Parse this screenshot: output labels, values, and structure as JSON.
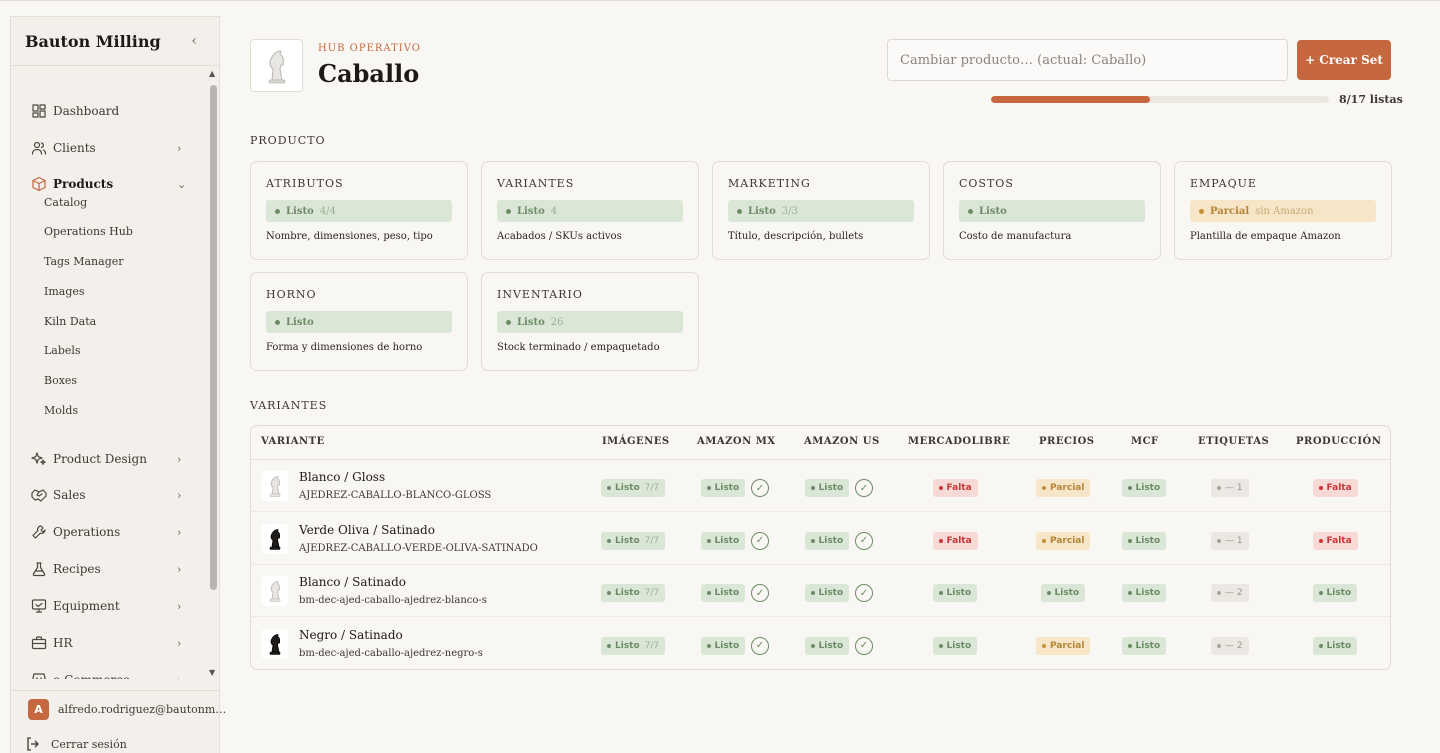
{
  "sidebar": {
    "brand": "Bauton Milling",
    "collapse_icon": "‹",
    "nav": [
      {
        "label": "Dashboard",
        "icon": "dashboard-icon",
        "chevron": ""
      },
      {
        "label": "Clients",
        "icon": "users-icon",
        "chevron": "›"
      },
      {
        "label": "Products",
        "icon": "box-icon",
        "chevron": "⌄"
      },
      {
        "label": "Product Design",
        "icon": "sparkles-icon",
        "chevron": "›"
      },
      {
        "label": "Sales",
        "icon": "handshake-icon",
        "chevron": "›"
      },
      {
        "label": "Operations",
        "icon": "wrench-icon",
        "chevron": "›"
      },
      {
        "label": "Recipes",
        "icon": "flask-icon",
        "chevron": "›"
      },
      {
        "label": "Equipment",
        "icon": "monitor-icon",
        "chevron": "›"
      },
      {
        "label": "HR",
        "icon": "briefcase-icon",
        "chevron": "›"
      },
      {
        "label": "e-Commerce",
        "icon": "store-icon",
        "chevron": "›"
      }
    ],
    "products_sub": [
      "Catalog",
      "Operations Hub",
      "Tags Manager",
      "Images",
      "Kiln Data",
      "Labels",
      "Boxes",
      "Molds"
    ],
    "user": {
      "initial": "A",
      "email": "alfredo.rodriguez@bautonm…"
    },
    "logout": "Cerrar sesión"
  },
  "header": {
    "eyebrow": "HUB OPERATIVO",
    "title": "Caballo",
    "search_placeholder": "Cambiar producto… (actual: Caballo)",
    "create_button": "+ Crear Set",
    "progress_fraction": 0.47,
    "progress_label": "8/17 listas"
  },
  "producto": {
    "section_label": "PRODUCTO",
    "cards": [
      {
        "title": "ATRIBUTOS",
        "status": "Listo",
        "sub": "4/4",
        "kind": "ok",
        "desc": "Nombre, dimensiones, peso, tipo"
      },
      {
        "title": "VARIANTES",
        "status": "Listo",
        "sub": "4",
        "kind": "ok",
        "desc": "Acabados / SKUs activos"
      },
      {
        "title": "MARKETING",
        "status": "Listo",
        "sub": "3/3",
        "kind": "ok",
        "desc": "Título, descripción, bullets"
      },
      {
        "title": "COSTOS",
        "status": "Listo",
        "sub": "",
        "kind": "ok",
        "desc": "Costo de manufactura"
      },
      {
        "title": "EMPAQUE",
        "status": "Parcial",
        "sub": "sin Amazon",
        "kind": "partial",
        "desc": "Plantilla de empaque Amazon"
      },
      {
        "title": "HORNO",
        "status": "Listo",
        "sub": "",
        "kind": "ok",
        "desc": "Forma y dimensiones de horno"
      },
      {
        "title": "INVENTARIO",
        "status": "Listo",
        "sub": "26",
        "kind": "ok",
        "desc": "Stock terminado / empaquetado"
      }
    ]
  },
  "variantes": {
    "section_label": "VARIANTES",
    "columns": [
      "VARIANTE",
      "IMÁGENES",
      "AMAZON MX",
      "AMAZON US",
      "MERCADOLIBRE",
      "PRECIOS",
      "MCF",
      "ETIQUETAS",
      "PRODUCCIÓN"
    ],
    "rows": [
      {
        "name": "Blanco / Gloss",
        "sku": "AJEDREZ-CABALLO-BLANCO-GLOSS",
        "piece": "white",
        "imagenes": {
          "s": "Listo",
          "sub": "7/7",
          "k": "ok"
        },
        "amz_mx": {
          "s": "Listo",
          "k": "ok",
          "check": "✓"
        },
        "amz_us": {
          "s": "Listo",
          "k": "ok",
          "check": "✓"
        },
        "meli": {
          "s": "Falta",
          "k": "miss"
        },
        "precios": {
          "s": "Parcial",
          "k": "part"
        },
        "mcf": {
          "s": "Listo",
          "k": "ok"
        },
        "etiquetas": {
          "s": "— 1",
          "k": "gray"
        },
        "produccion": {
          "s": "Falta",
          "k": "miss"
        }
      },
      {
        "name": "Verde Oliva / Satinado",
        "sku": "AJEDREZ-CABALLO-VERDE-OLIVA-SATINADO",
        "piece": "black",
        "imagenes": {
          "s": "Listo",
          "sub": "7/7",
          "k": "ok"
        },
        "amz_mx": {
          "s": "Listo",
          "k": "ok",
          "check": "✓"
        },
        "amz_us": {
          "s": "Listo",
          "k": "ok",
          "check": "✓"
        },
        "meli": {
          "s": "Falta",
          "k": "miss"
        },
        "precios": {
          "s": "Parcial",
          "k": "part"
        },
        "mcf": {
          "s": "Listo",
          "k": "ok"
        },
        "etiquetas": {
          "s": "— 1",
          "k": "gray"
        },
        "produccion": {
          "s": "Falta",
          "k": "miss"
        }
      },
      {
        "name": "Blanco / Satinado",
        "sku": "bm-dec-ajed-caballo-ajedrez-blanco-s",
        "piece": "white",
        "imagenes": {
          "s": "Listo",
          "sub": "7/7",
          "k": "ok"
        },
        "amz_mx": {
          "s": "Listo",
          "k": "ok",
          "check": "✓"
        },
        "amz_us": {
          "s": "Listo",
          "k": "ok",
          "check": "✓"
        },
        "meli": {
          "s": "Listo",
          "k": "ok"
        },
        "precios": {
          "s": "Listo",
          "k": "ok"
        },
        "mcf": {
          "s": "Listo",
          "k": "ok"
        },
        "etiquetas": {
          "s": "— 2",
          "k": "gray"
        },
        "produccion": {
          "s": "Listo",
          "k": "ok"
        }
      },
      {
        "name": "Negro / Satinado",
        "sku": "bm-dec-ajed-caballo-ajedrez-negro-s",
        "piece": "black",
        "imagenes": {
          "s": "Listo",
          "sub": "7/7",
          "k": "ok"
        },
        "amz_mx": {
          "s": "Listo",
          "k": "ok",
          "check": "✓"
        },
        "amz_us": {
          "s": "Listo",
          "k": "ok",
          "check": "✓"
        },
        "meli": {
          "s": "Listo",
          "k": "ok"
        },
        "precios": {
          "s": "Parcial",
          "k": "part"
        },
        "mcf": {
          "s": "Listo",
          "k": "ok"
        },
        "etiquetas": {
          "s": "— 2",
          "k": "gray"
        },
        "produccion": {
          "s": "Listo",
          "k": "ok"
        }
      }
    ]
  },
  "colors": {
    "accent": "#c5683f",
    "ok_bg": "#dbe7d6",
    "ok_fg": "#6c8b66",
    "miss_bg": "#f7d9d6",
    "miss_fg": "#c7373a",
    "partial_bg": "#f6e6c7",
    "partial_fg": "#b58538"
  }
}
